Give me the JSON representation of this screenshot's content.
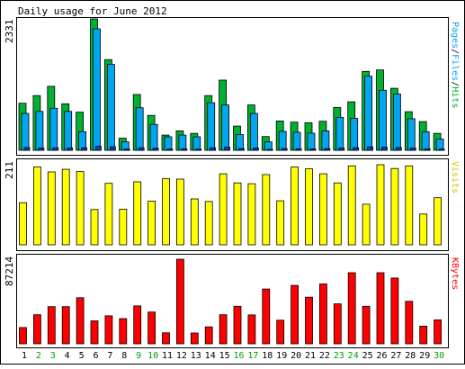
{
  "chart_data": {
    "type": "bar",
    "title": "Daily usage for June 2012",
    "categories": [
      "1",
      "2",
      "3",
      "4",
      "5",
      "6",
      "7",
      "8",
      "9",
      "10",
      "11",
      "12",
      "13",
      "14",
      "15",
      "16",
      "17",
      "18",
      "19",
      "20",
      "21",
      "22",
      "23",
      "24",
      "25",
      "26",
      "27",
      "28",
      "29",
      "30"
    ],
    "weekend_days": [
      "2",
      "3",
      "9",
      "10",
      "16",
      "17",
      "23",
      "24",
      "30"
    ],
    "panels": [
      {
        "name": "hits_files",
        "max_label": "2331",
        "ylim": [
          0,
          2331
        ],
        "right_label_parts": [
          "Pages",
          "/",
          "Files",
          "/",
          "Hits"
        ],
        "series": [
          {
            "name": "Hits",
            "color": "#00b030",
            "values": [
              835,
              970,
              1135,
              825,
              677,
              2331,
              1610,
              215,
              990,
              620,
              270,
              345,
              300,
              970,
              1245,
              430,
              805,
              245,
              520,
              500,
              490,
              515,
              760,
              860,
              1400,
              1425,
              1100,
              685,
              510,
              300
            ]
          },
          {
            "name": "Files",
            "color": "#00a6ef",
            "values": [
              655,
              690,
              745,
              690,
              330,
              2155,
              1525,
              150,
              755,
              460,
              240,
              270,
              240,
              845,
              805,
              280,
              655,
              150,
              335,
              320,
              305,
              345,
              585,
              565,
              1315,
              1065,
              1000,
              560,
              330,
              200
            ]
          },
          {
            "name": "Pages",
            "color": "#1a3bb8",
            "values": [
              50,
              40,
              45,
              40,
              45,
              70,
              60,
              20,
              45,
              35,
              20,
              25,
              20,
              45,
              55,
              30,
              40,
              15,
              30,
              25,
              25,
              30,
              40,
              45,
              60,
              55,
              50,
              40,
              25,
              20
            ]
          }
        ]
      },
      {
        "name": "visits",
        "max_label": "211",
        "ylim": [
          0,
          211
        ],
        "right_label": "Visits",
        "series": [
          {
            "name": "Visits",
            "color": "#ffff00",
            "values": [
              111,
              205,
              192,
              199,
              193,
              93,
              162,
              94,
              166,
              115,
              174,
              173,
              121,
              114,
              187,
              163,
              161,
              185,
              116,
              205,
              200,
              187,
              163,
              208,
              107,
              211,
              201,
              208,
              81,
              124
            ]
          }
        ]
      },
      {
        "name": "kbytes",
        "max_label": "87214",
        "ylim": [
          0,
          87214
        ],
        "right_label": "KBytes",
        "series": [
          {
            "name": "KBytes",
            "color": "#ff0000",
            "values": [
              16760,
              29960,
              38320,
              38320,
              47470,
              23690,
              28860,
              25950,
              39060,
              32770,
              11360,
              87214,
              11170,
              17450,
              29940,
              38700,
              29740,
              56460,
              24310,
              60230,
              48100,
              61710,
              41230,
              73260,
              38700,
              73260,
              67790,
              43770,
              18140,
              24660
            ]
          }
        ]
      }
    ]
  }
}
